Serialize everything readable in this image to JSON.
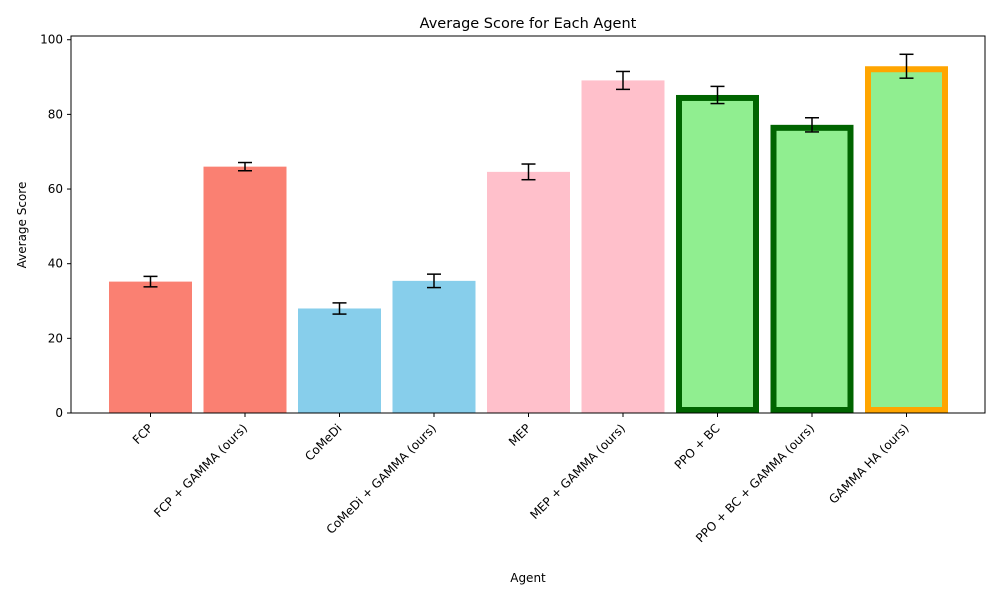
{
  "chart_data": {
    "type": "bar",
    "title": "Average Score for Each Agent",
    "xlabel": "Agent",
    "ylabel": "Average Score",
    "ylim": [
      0,
      101
    ],
    "yticks": [
      0,
      20,
      40,
      60,
      80,
      100
    ],
    "grid": false,
    "categories": [
      "FCP",
      "FCP + GAMMA (ours)",
      "CoMeDi",
      "CoMeDi + GAMMA (ours)",
      "MEP",
      "MEP + GAMMA (ours)",
      "PPO + BC",
      "PPO + BC + GAMMA (ours)",
      "GAMMA HA (ours)"
    ],
    "values": [
      35.2,
      66.0,
      28.0,
      35.4,
      64.6,
      89.1,
      85.2,
      77.2,
      92.9
    ],
    "errors": [
      1.4,
      1.1,
      1.5,
      1.8,
      2.1,
      2.4,
      2.3,
      1.9,
      3.2
    ],
    "fill_colors": [
      "#fa8072",
      "#fa8072",
      "#87ceeb",
      "#87ceeb",
      "#ffc0cb",
      "#ffc0cb",
      "#90ee90",
      "#90ee90",
      "#90ee90"
    ],
    "edge_colors": [
      "",
      "",
      "",
      "",
      "",
      "",
      "#006400",
      "#006400",
      "#ffa500"
    ]
  }
}
